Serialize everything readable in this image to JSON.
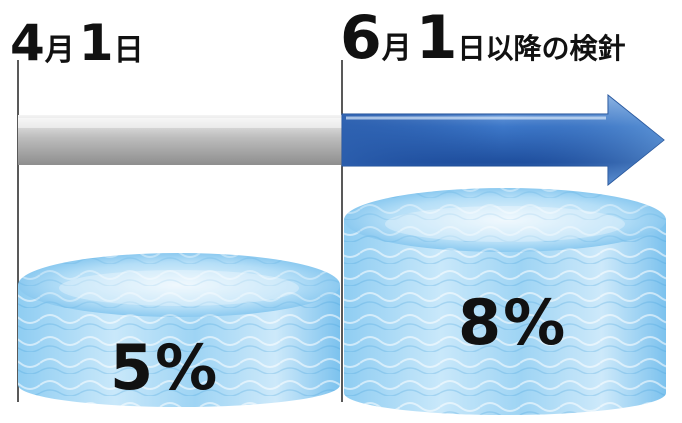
{
  "left_label": {
    "num1": "4",
    "kanji1": "月",
    "num2": "1",
    "kanji2": "日"
  },
  "right_label": {
    "num1": "6",
    "kanji1": "月",
    "num2": "1",
    "kanji2": "日以降の検針"
  },
  "left_tank": {
    "value_text": "5%",
    "level": 0.05
  },
  "right_tank": {
    "value_text": "8%",
    "level": 0.08
  },
  "colors": {
    "gray_bar": "#c9c9c9",
    "arrow_blue": "#2b5fb0",
    "water_light": "#cfe9f9",
    "water_mid": "#7cc3ee",
    "water_dark": "#3b9fdc",
    "text": "#111111"
  }
}
